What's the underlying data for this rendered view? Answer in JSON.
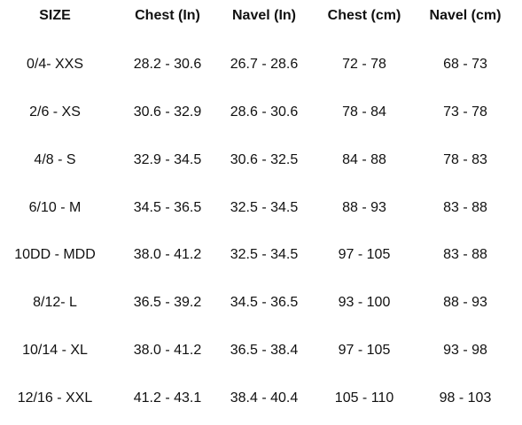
{
  "table": {
    "headers": [
      "SIZE",
      "Chest (In)",
      "Navel (In)",
      "Chest (cm)",
      "Navel (cm)"
    ],
    "rows": [
      [
        "0/4- XXS",
        "28.2 - 30.6",
        "26.7 - 28.6",
        "72 - 78",
        "68 - 73"
      ],
      [
        "2/6 - XS",
        "30.6 - 32.9",
        "28.6 - 30.6",
        "78 - 84",
        "73 - 78"
      ],
      [
        "4/8 - S",
        "32.9 - 34.5",
        "30.6 - 32.5",
        "84 - 88",
        "78 - 83"
      ],
      [
        "6/10 - M",
        "34.5 - 36.5",
        "32.5 - 34.5",
        "88 - 93",
        "83 - 88"
      ],
      [
        "10DD - MDD",
        "38.0 - 41.2",
        "32.5 - 34.5",
        "97 - 105",
        "83 - 88"
      ],
      [
        "8/12- L",
        "36.5 - 39.2",
        "34.5 - 36.5",
        "93 - 100",
        "88 - 93"
      ],
      [
        "10/14 - XL",
        "38.0 - 41.2",
        "36.5 - 38.4",
        "97 - 105",
        "93 - 98"
      ],
      [
        "12/16 - XXL",
        "41.2 - 43.1",
        "38.4 - 40.4",
        "105 - 110",
        "98 - 103"
      ]
    ]
  }
}
